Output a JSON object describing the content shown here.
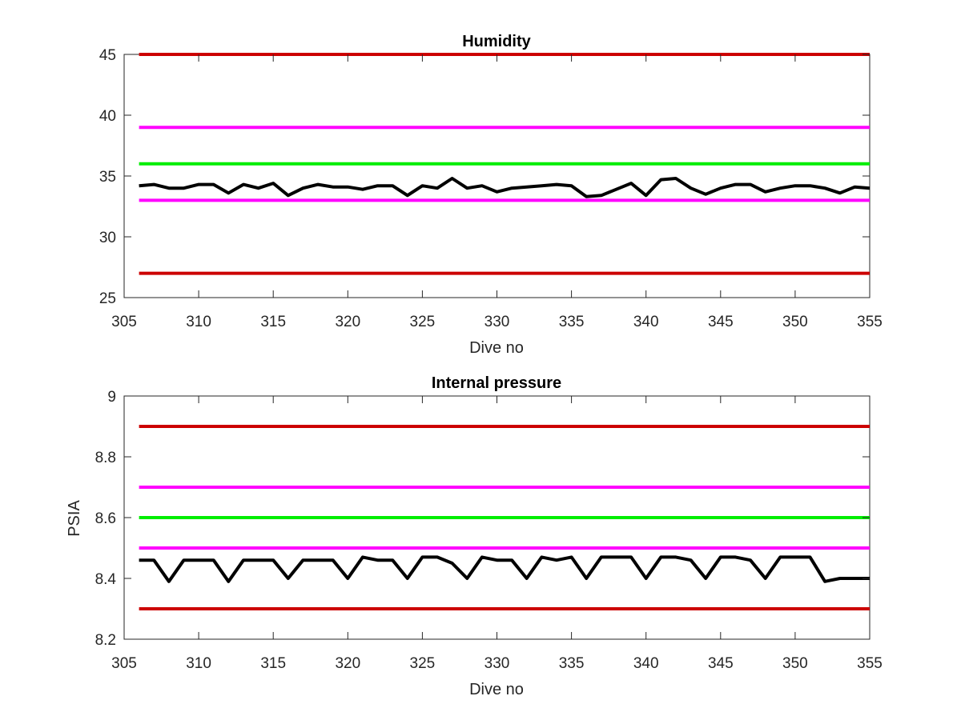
{
  "chart_data": [
    {
      "type": "line",
      "title": "Humidity",
      "xlabel": "Dive no",
      "ylabel": "",
      "xlim": [
        305,
        355
      ],
      "ylim": [
        25,
        45
      ],
      "xticks": [
        305,
        310,
        315,
        320,
        325,
        330,
        335,
        340,
        345,
        350,
        355
      ],
      "yticks": [
        25,
        30,
        35,
        40,
        45
      ],
      "grid": false,
      "threshold_lines": [
        {
          "value": 45,
          "color": "#cc0000"
        },
        {
          "value": 39,
          "color": "#ff00ff"
        },
        {
          "value": 36,
          "color": "#00ee00"
        },
        {
          "value": 33,
          "color": "#ff00ff"
        },
        {
          "value": 27,
          "color": "#cc0000"
        }
      ],
      "series": [
        {
          "color": "#000000",
          "x": [
            306,
            307,
            308,
            309,
            310,
            311,
            312,
            313,
            314,
            315,
            316,
            317,
            318,
            319,
            320,
            321,
            322,
            323,
            324,
            325,
            326,
            327,
            328,
            329,
            330,
            331,
            332,
            333,
            334,
            335,
            336,
            337,
            338,
            339,
            340,
            341,
            342,
            343,
            344,
            345,
            346,
            347,
            348,
            349,
            350,
            351,
            352,
            353,
            354,
            355
          ],
          "y": [
            34.2,
            34.3,
            34.0,
            34.0,
            34.3,
            34.3,
            33.6,
            34.3,
            34.0,
            34.4,
            33.4,
            34.0,
            34.3,
            34.1,
            34.1,
            33.9,
            34.2,
            34.2,
            33.4,
            34.2,
            34.0,
            34.8,
            34.0,
            34.2,
            33.7,
            34.0,
            34.1,
            34.2,
            34.3,
            34.2,
            33.3,
            33.4,
            33.9,
            34.4,
            33.4,
            34.7,
            34.8,
            34.0,
            33.5,
            34.0,
            34.3,
            34.3,
            33.7,
            34.0,
            34.2,
            34.2,
            34.0,
            33.6,
            34.1,
            34.0
          ]
        }
      ]
    },
    {
      "type": "line",
      "title": "Internal pressure",
      "xlabel": "Dive no",
      "ylabel": "PSIA",
      "xlim": [
        305,
        355
      ],
      "ylim": [
        8.2,
        9.0
      ],
      "xticks": [
        305,
        310,
        315,
        320,
        325,
        330,
        335,
        340,
        345,
        350,
        355
      ],
      "yticks": [
        "8.2",
        "8.4",
        "8.6",
        "8.8",
        "9"
      ],
      "grid": false,
      "threshold_lines": [
        {
          "value": 8.9,
          "color": "#cc0000"
        },
        {
          "value": 8.7,
          "color": "#ff00ff"
        },
        {
          "value": 8.6,
          "color": "#00ee00"
        },
        {
          "value": 8.5,
          "color": "#ff00ff"
        },
        {
          "value": 8.3,
          "color": "#cc0000"
        }
      ],
      "series": [
        {
          "color": "#000000",
          "x": [
            306,
            307,
            308,
            309,
            310,
            311,
            312,
            313,
            314,
            315,
            316,
            317,
            318,
            319,
            320,
            321,
            322,
            323,
            324,
            325,
            326,
            327,
            328,
            329,
            330,
            331,
            332,
            333,
            334,
            335,
            336,
            337,
            338,
            339,
            340,
            341,
            342,
            343,
            344,
            345,
            346,
            347,
            348,
            349,
            350,
            351,
            352,
            353,
            354,
            355
          ],
          "y": [
            8.46,
            8.46,
            8.39,
            8.46,
            8.46,
            8.46,
            8.39,
            8.46,
            8.46,
            8.46,
            8.4,
            8.46,
            8.46,
            8.46,
            8.4,
            8.47,
            8.46,
            8.46,
            8.4,
            8.47,
            8.47,
            8.45,
            8.4,
            8.47,
            8.46,
            8.46,
            8.4,
            8.47,
            8.46,
            8.47,
            8.4,
            8.47,
            8.47,
            8.47,
            8.4,
            8.47,
            8.47,
            8.46,
            8.4,
            8.47,
            8.47,
            8.46,
            8.4,
            8.47,
            8.47,
            8.47,
            8.39,
            8.4,
            8.4,
            8.4
          ]
        }
      ]
    }
  ]
}
